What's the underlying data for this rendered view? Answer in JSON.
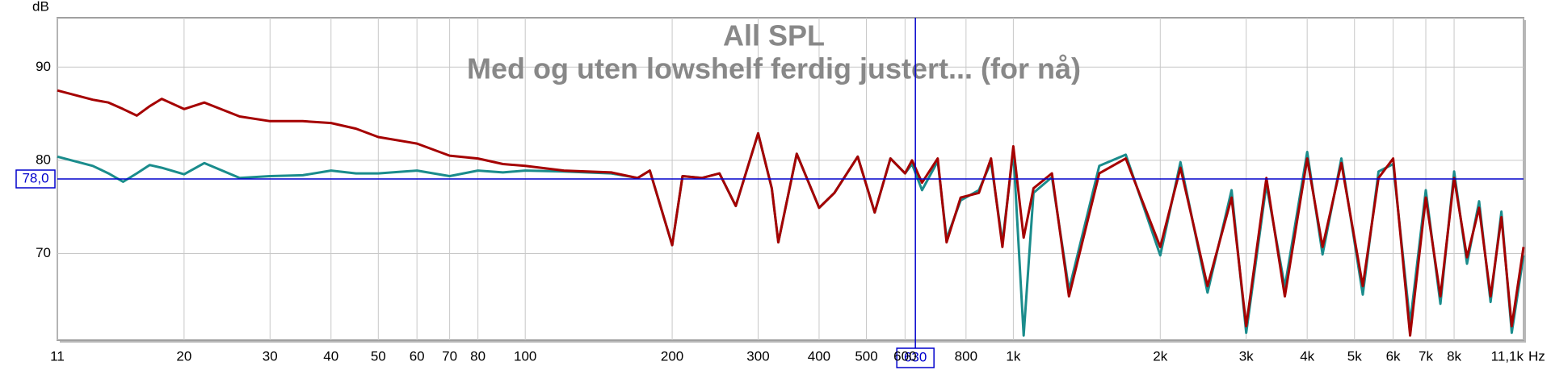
{
  "chart_data": {
    "type": "line",
    "title": "All SPL",
    "subtitle": "Med og uten lowshelf ferdig justert... (for nå)",
    "y_label": "dB",
    "x_label": "Hz",
    "xscale": "log",
    "grid": true,
    "xlim": [
      11,
      11100
    ],
    "ylim": [
      60.7,
      95.3
    ],
    "xticks": [
      11,
      20,
      30,
      40,
      50,
      60,
      70,
      80,
      100,
      200,
      300,
      400,
      500,
      600,
      800,
      {
        "value": 1000,
        "label": "1k"
      },
      {
        "value": 2000,
        "label": "2k"
      },
      {
        "value": 3000,
        "label": "3k"
      },
      {
        "value": 4000,
        "label": "4k"
      },
      {
        "value": 5000,
        "label": "5k"
      },
      {
        "value": 6000,
        "label": "6k"
      },
      {
        "value": 7000,
        "label": "7k"
      },
      {
        "value": 8000,
        "label": "8k"
      },
      {
        "value": 11100,
        "label": "11,1k"
      }
    ],
    "yticks": [
      70,
      80,
      90
    ],
    "cursor": {
      "x": {
        "value": 630,
        "label": "630"
      },
      "y": {
        "value": 78,
        "label": "78,0"
      },
      "color": "#0000cc"
    },
    "x": [
      11,
      13,
      14,
      15,
      16,
      17,
      18,
      20,
      22,
      26,
      30,
      35,
      40,
      45,
      50,
      60,
      70,
      80,
      90,
      100,
      120,
      150,
      170,
      180,
      200,
      210,
      230,
      250,
      270,
      300,
      320,
      330,
      360,
      400,
      430,
      480,
      520,
      560,
      600,
      620,
      650,
      700,
      730,
      780,
      850,
      900,
      950,
      1000,
      1050,
      1100,
      1200,
      1300,
      1500,
      1700,
      2000,
      2200,
      2500,
      2800,
      3000,
      3300,
      3600,
      4000,
      4300,
      4700,
      5200,
      5600,
      6000,
      6500,
      7000,
      7500,
      8000,
      8500,
      9000,
      9500,
      10000,
      10500,
      11100
    ],
    "series": [
      {
        "color": "#1a8c8c",
        "values": [
          80.4,
          79.4,
          78.6,
          77.7,
          78.6,
          79.5,
          79.2,
          78.5,
          79.7,
          78.1,
          78.3,
          78.4,
          78.9,
          78.6,
          78.6,
          78.9,
          78.3,
          78.9,
          78.7,
          78.9,
          78.8,
          78.6,
          78.1,
          78.9,
          70.9,
          78.3,
          78.1,
          78.6,
          75.1,
          82.9,
          77,
          71.2,
          80.7,
          74.9,
          76.5,
          80.4,
          74.4,
          80.2,
          78.6,
          79.6,
          76.8,
          79.9,
          71.6,
          75.7,
          76.8,
          79.8,
          71.2,
          81,
          61.2,
          76.5,
          78.2,
          66.1,
          79.4,
          80.6,
          69.8,
          79.8,
          65.8,
          76.8,
          61.5,
          77.4,
          66.4,
          80.9,
          69.9,
          80.2,
          65.6,
          78.8,
          79.6,
          62.5,
          76.8,
          64.6,
          78.8,
          68.9,
          75.6,
          64.8,
          74.5,
          61.5,
          69.8
        ]
      },
      {
        "color": "#a50000",
        "values": [
          87.5,
          86.5,
          86.2,
          85.5,
          84.8,
          85.8,
          86.6,
          85.5,
          86.2,
          84.7,
          84.2,
          84.2,
          84,
          83.4,
          82.5,
          81.8,
          80.5,
          80.2,
          79.6,
          79.4,
          78.9,
          78.7,
          78.1,
          78.9,
          70.9,
          78.3,
          78.1,
          78.6,
          75.1,
          82.9,
          77,
          71.2,
          80.7,
          74.9,
          76.5,
          80.4,
          74.4,
          80.2,
          78.6,
          80,
          77.6,
          80.2,
          71.2,
          76,
          76.5,
          80.2,
          70.7,
          81.5,
          71.7,
          77,
          78.6,
          65.4,
          78.6,
          80.2,
          70.7,
          79.2,
          66.5,
          76,
          62.2,
          78.1,
          65.4,
          80.2,
          70.7,
          79.7,
          66.5,
          78.1,
          80.2,
          61.2,
          76,
          65.4,
          78.1,
          69.6,
          74.9,
          65.4,
          73.9,
          62.2,
          70.7
        ]
      }
    ]
  }
}
